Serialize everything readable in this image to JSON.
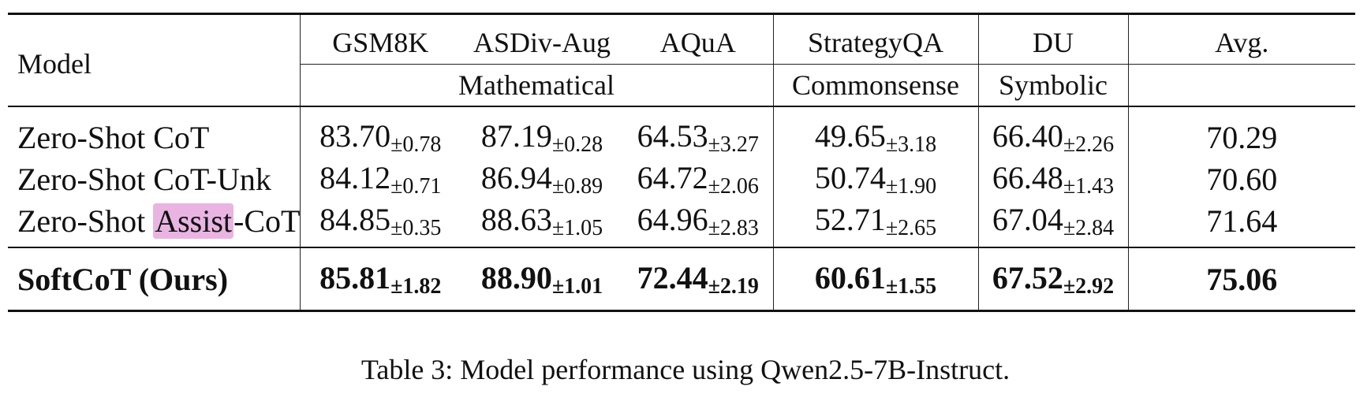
{
  "table": {
    "model_label": "Model",
    "columns": [
      "GSM8K",
      "ASDiv-Aug",
      "AQuA",
      "StrategyQA",
      "DU",
      "Avg."
    ],
    "groups": [
      "Mathematical",
      "Commonsense",
      "Symbolic"
    ],
    "rows": [
      {
        "model_pre": "Zero-Shot CoT",
        "model_highlight": "",
        "model_post": "",
        "cells": [
          {
            "v": "83.70",
            "s": "±0.78"
          },
          {
            "v": "87.19",
            "s": "±0.28"
          },
          {
            "v": "64.53",
            "s": "±3.27"
          },
          {
            "v": "49.65",
            "s": "±3.18"
          },
          {
            "v": "66.40",
            "s": "±2.26"
          }
        ],
        "avg": "70.29"
      },
      {
        "model_pre": "Zero-Shot CoT-Unk",
        "model_highlight": "",
        "model_post": "",
        "cells": [
          {
            "v": "84.12",
            "s": "±0.71"
          },
          {
            "v": "86.94",
            "s": "±0.89"
          },
          {
            "v": "64.72",
            "s": "±2.06"
          },
          {
            "v": "50.74",
            "s": "±1.90"
          },
          {
            "v": "66.48",
            "s": "±1.43"
          }
        ],
        "avg": "70.60"
      },
      {
        "model_pre": "Zero-Shot ",
        "model_highlight": "Assist",
        "model_post": "-CoT",
        "cells": [
          {
            "v": "84.85",
            "s": "±0.35"
          },
          {
            "v": "88.63",
            "s": "±1.05"
          },
          {
            "v": "64.96",
            "s": "±2.83"
          },
          {
            "v": "52.71",
            "s": "±2.65"
          },
          {
            "v": "67.04",
            "s": "±2.84"
          }
        ],
        "avg": "71.64"
      }
    ],
    "ours": {
      "model": "SoftCoT (Ours)",
      "cells": [
        {
          "v": "85.81",
          "s": "±1.82"
        },
        {
          "v": "88.90",
          "s": "±1.01"
        },
        {
          "v": "72.44",
          "s": "±2.19"
        },
        {
          "v": "60.61",
          "s": "±1.55"
        },
        {
          "v": "67.52",
          "s": "±2.92"
        }
      ],
      "avg": "75.06"
    }
  },
  "caption": "Table 3: Model performance using Qwen2.5-7B-Instruct.",
  "colors": {
    "highlight": "#e9b4e2",
    "rule": "#111111"
  }
}
